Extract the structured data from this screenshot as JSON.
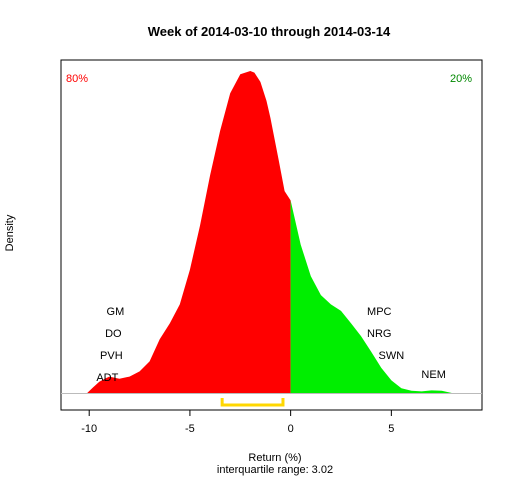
{
  "chart_data": {
    "type": "area",
    "title": "Week of 2014-03-10 through 2014-03-14",
    "xlabel": "Return (%)",
    "ylabel": "Density",
    "subtitle": "interquartile range: 3.02",
    "xlim": [
      -11.4,
      9.5
    ],
    "ylim": [
      0,
      1
    ],
    "xticks": [
      -10,
      -5,
      0,
      5
    ],
    "xtick_labels": [
      "-10",
      "-5",
      "0",
      "5"
    ],
    "split_at": 0,
    "negative_share": "80%",
    "positive_share": "20%",
    "colors": {
      "negative": "#ff0000",
      "positive": "#00ee00",
      "iqr": "#ffd700",
      "baseline": "#bbbbbb",
      "neg_text": "#ff0000",
      "pos_text": "#008800"
    },
    "density": {
      "x": [
        -10.1,
        -9.8,
        -9.5,
        -9.2,
        -9.0,
        -8.5,
        -8.0,
        -7.5,
        -7.0,
        -6.5,
        -6.0,
        -5.5,
        -5.0,
        -4.5,
        -4.0,
        -3.5,
        -3.0,
        -2.5,
        -2.0,
        -1.8,
        -1.5,
        -1.2,
        -1.0,
        -0.6,
        -0.3,
        0.0,
        0.5,
        1.0,
        1.5,
        2.0,
        2.5,
        3.0,
        3.5,
        4.0,
        4.5,
        5.0,
        5.5,
        6.0,
        6.5,
        7.0,
        7.5,
        8.0
      ],
      "y": [
        0.0,
        0.018,
        0.035,
        0.045,
        0.051,
        0.044,
        0.051,
        0.067,
        0.098,
        0.167,
        0.216,
        0.275,
        0.383,
        0.52,
        0.676,
        0.814,
        0.931,
        0.99,
        1.0,
        0.995,
        0.966,
        0.907,
        0.853,
        0.725,
        0.627,
        0.598,
        0.461,
        0.363,
        0.304,
        0.275,
        0.255,
        0.216,
        0.176,
        0.128,
        0.078,
        0.039,
        0.015,
        0.007,
        0.005,
        0.008,
        0.007,
        0.0
      ]
    },
    "iqr": [
      -3.4,
      -0.38
    ],
    "annotations": [
      {
        "text": "GM",
        "x": -8.7,
        "y": 0.255
      },
      {
        "text": "DO",
        "x": -8.8,
        "y": 0.187
      },
      {
        "text": "PVH",
        "x": -8.9,
        "y": 0.118
      },
      {
        "text": "ADT",
        "x": -9.1,
        "y": 0.049
      },
      {
        "text": "MPC",
        "x": 4.4,
        "y": 0.255
      },
      {
        "text": "NRG",
        "x": 4.4,
        "y": 0.187
      },
      {
        "text": "SWN",
        "x": 5.0,
        "y": 0.118
      },
      {
        "text": "NEM",
        "x": 7.1,
        "y": 0.059
      }
    ]
  }
}
